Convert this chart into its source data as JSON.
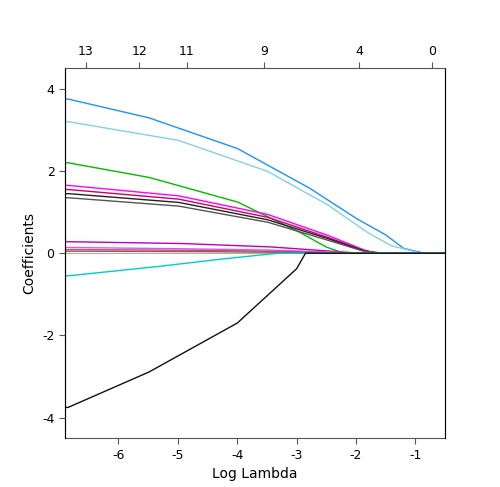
{
  "xlabel": "Log Lambda",
  "ylabel": "Coefficients",
  "xlim": [
    -6.9,
    -0.5
  ],
  "ylim": [
    -4.5,
    4.5
  ],
  "x_ticks": [
    -6,
    -5,
    -4,
    -3,
    -2,
    -1
  ],
  "y_ticks": [
    -4,
    -2,
    0,
    2,
    4
  ],
  "top_tick_positions": [
    -6.55,
    -5.65,
    -4.85,
    -3.55,
    -1.95,
    -0.72
  ],
  "top_tick_labels": [
    "13",
    "12",
    "11",
    "9",
    "4",
    "0"
  ],
  "paths": [
    {
      "color": "#1E90FF",
      "points_x": [
        -6.85,
        -5.5,
        -4.0,
        -2.8,
        -2.0,
        -1.5,
        -1.2,
        -0.85
      ],
      "points_y": [
        3.75,
        3.3,
        2.55,
        1.6,
        0.85,
        0.45,
        0.12,
        0.0
      ],
      "zero_x": -0.85
    },
    {
      "color": "#87CEEB",
      "points_x": [
        -6.85,
        -5.0,
        -3.5,
        -2.5,
        -1.8,
        -1.4,
        -0.9
      ],
      "points_y": [
        3.2,
        2.75,
        2.0,
        1.2,
        0.5,
        0.18,
        0.0
      ],
      "zero_x": -0.9
    },
    {
      "color": "#00BB00",
      "points_x": [
        -6.85,
        -5.5,
        -4.0,
        -3.0,
        -2.5,
        -2.2
      ],
      "points_y": [
        2.2,
        1.85,
        1.25,
        0.55,
        0.15,
        0.0
      ],
      "zero_x": -2.2
    },
    {
      "color": "#FF00FF",
      "points_x": [
        -6.85,
        -5.0,
        -3.5,
        -2.5,
        -1.9,
        -1.7
      ],
      "points_y": [
        1.65,
        1.4,
        0.95,
        0.45,
        0.1,
        0.0
      ],
      "zero_x": -1.7
    },
    {
      "color": "#CC0066",
      "points_x": [
        -6.85,
        -5.0,
        -3.5,
        -2.5,
        -1.9,
        -1.65
      ],
      "points_y": [
        1.55,
        1.32,
        0.88,
        0.4,
        0.08,
        0.0
      ],
      "zero_x": -1.65
    },
    {
      "color": "#222222",
      "points_x": [
        -6.85,
        -5.0,
        -3.5,
        -2.5,
        -1.9,
        -1.6
      ],
      "points_y": [
        1.45,
        1.24,
        0.82,
        0.37,
        0.07,
        0.0
      ],
      "zero_x": -1.6
    },
    {
      "color": "#555555",
      "points_x": [
        -6.85,
        -5.0,
        -3.5,
        -2.5,
        -1.9,
        -1.55
      ],
      "points_y": [
        1.35,
        1.15,
        0.76,
        0.33,
        0.06,
        0.0
      ],
      "zero_x": -1.55
    },
    {
      "color": "#BB00BB",
      "points_x": [
        -6.85,
        -5.0,
        -3.5,
        -2.3,
        -1.95
      ],
      "points_y": [
        0.28,
        0.24,
        0.16,
        0.04,
        0.0
      ],
      "zero_x": -1.95
    },
    {
      "color": "#FF44FF",
      "points_x": [
        -6.85,
        -5.5,
        -3.5,
        -2.2,
        -1.85
      ],
      "points_y": [
        0.14,
        0.12,
        0.08,
        0.02,
        0.0
      ],
      "zero_x": -1.85
    },
    {
      "color": "#777777",
      "points_x": [
        -6.85,
        -5.0,
        -3.5,
        -2.2,
        -1.9
      ],
      "points_y": [
        0.09,
        0.077,
        0.052,
        0.013,
        0.0
      ],
      "zero_x": -1.9
    },
    {
      "color": "#BB4444",
      "points_x": [
        -6.85,
        -5.0,
        -3.5,
        -2.3,
        -2.0
      ],
      "points_y": [
        0.05,
        0.043,
        0.028,
        0.007,
        0.0
      ],
      "zero_x": -2.0
    },
    {
      "color": "#00CCCC",
      "points_x": [
        -6.85,
        -5.5,
        -4.5,
        -3.8,
        -3.3
      ],
      "points_y": [
        -0.55,
        -0.35,
        -0.18,
        -0.07,
        0.0
      ],
      "zero_x": -3.3
    },
    {
      "color": "#111111",
      "points_x": [
        -6.85,
        -5.5,
        -4.0,
        -3.0,
        -2.85
      ],
      "points_y": [
        -3.75,
        -2.9,
        -1.7,
        -0.38,
        0.0
      ],
      "zero_x": -2.85
    }
  ]
}
